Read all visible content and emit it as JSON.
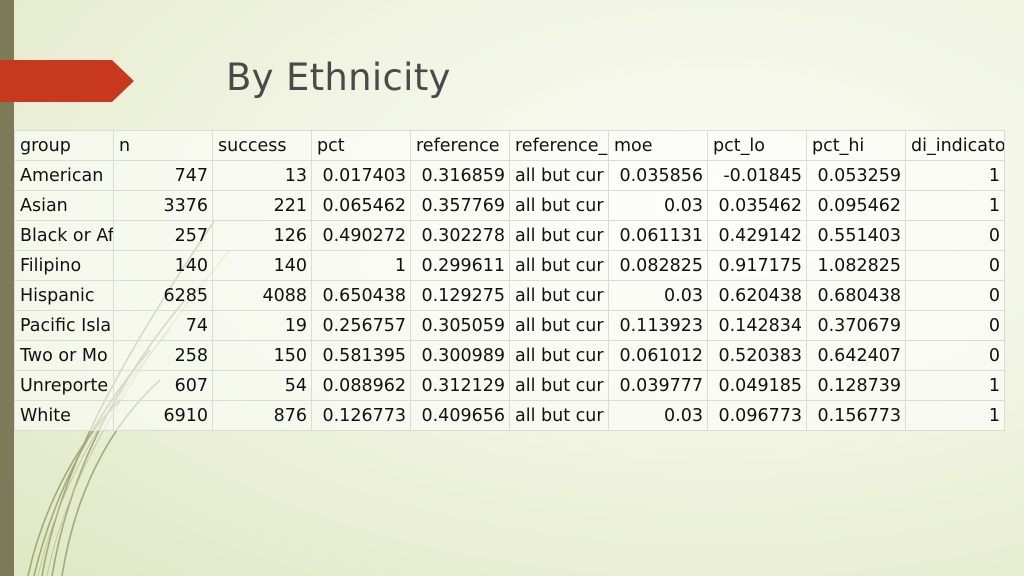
{
  "slide": {
    "title": "By Ethnicity"
  },
  "table": {
    "columns": [
      "group",
      "n",
      "success",
      "pct",
      "reference",
      "reference_",
      "moe",
      "pct_lo",
      "pct_hi",
      "di_indicato"
    ],
    "rows": [
      [
        "American",
        "747",
        "13",
        "0.017403",
        "0.316859",
        "all but cur",
        "0.035856",
        "-0.01845",
        "0.053259",
        "1"
      ],
      [
        "Asian",
        "3376",
        "221",
        "0.065462",
        "0.357769",
        "all but cur",
        "0.03",
        "0.035462",
        "0.095462",
        "1"
      ],
      [
        "Black or Af",
        "257",
        "126",
        "0.490272",
        "0.302278",
        "all but cur",
        "0.061131",
        "0.429142",
        "0.551403",
        "0"
      ],
      [
        "Filipino",
        "140",
        "140",
        "1",
        "0.299611",
        "all but cur",
        "0.082825",
        "0.917175",
        "1.082825",
        "0"
      ],
      [
        "Hispanic",
        "6285",
        "4088",
        "0.650438",
        "0.129275",
        "all but cur",
        "0.03",
        "0.620438",
        "0.680438",
        "0"
      ],
      [
        "Pacific Isla",
        "74",
        "19",
        "0.256757",
        "0.305059",
        "all but cur",
        "0.113923",
        "0.142834",
        "0.370679",
        "0"
      ],
      [
        "Two or Mo",
        "258",
        "150",
        "0.581395",
        "0.300989",
        "all but cur",
        "0.061012",
        "0.520383",
        "0.642407",
        "0"
      ],
      [
        "Unreporte",
        "607",
        "54",
        "0.088962",
        "0.312129",
        "all but cur",
        "0.039777",
        "0.049185",
        "0.128739",
        "1"
      ],
      [
        "White",
        "6910",
        "876",
        "0.126773",
        "0.409656",
        "all but cur",
        "0.03",
        "0.096773",
        "0.156773",
        "1"
      ]
    ]
  },
  "colors": {
    "accent": "#c8381f",
    "sidebar": "#7d7a5a",
    "title": "#4a4a4a"
  }
}
